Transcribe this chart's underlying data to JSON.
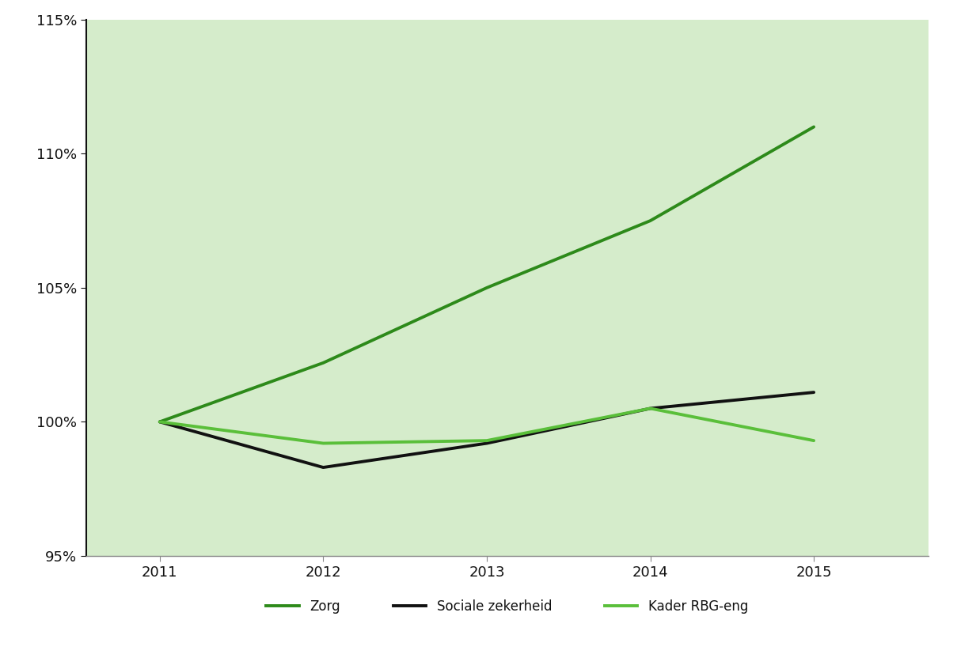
{
  "years": [
    2011,
    2012,
    2013,
    2014,
    2015
  ],
  "series": {
    "Zorg": {
      "values": [
        100,
        102.2,
        105.0,
        107.5,
        111.0
      ],
      "color": "#2d8a1a",
      "linewidth": 2.8
    },
    "Sociale zekerheid": {
      "values": [
        100,
        98.3,
        99.2,
        100.5,
        101.1
      ],
      "color": "#111111",
      "linewidth": 2.8
    },
    "Kader RBG-eng": {
      "values": [
        100,
        99.2,
        99.3,
        100.5,
        99.3
      ],
      "color": "#5abf3a",
      "linewidth": 2.8
    }
  },
  "ylim": [
    95,
    115
  ],
  "yticks": [
    95,
    100,
    105,
    110,
    115
  ],
  "xlim": [
    2010.55,
    2015.7
  ],
  "xticks": [
    2011,
    2012,
    2013,
    2014,
    2015
  ],
  "background_color": "#d5eccb",
  "figure_background": "#ffffff",
  "left_spine_color": "#111111",
  "bottom_spine_color": "#888888",
  "tick_color": "#111111",
  "tick_label_color": "#111111",
  "legend_fontsize": 12,
  "tick_fontsize": 13,
  "legend_items": [
    "Zorg",
    "Sociale zekerheid",
    "Kader RBG-eng"
  ]
}
